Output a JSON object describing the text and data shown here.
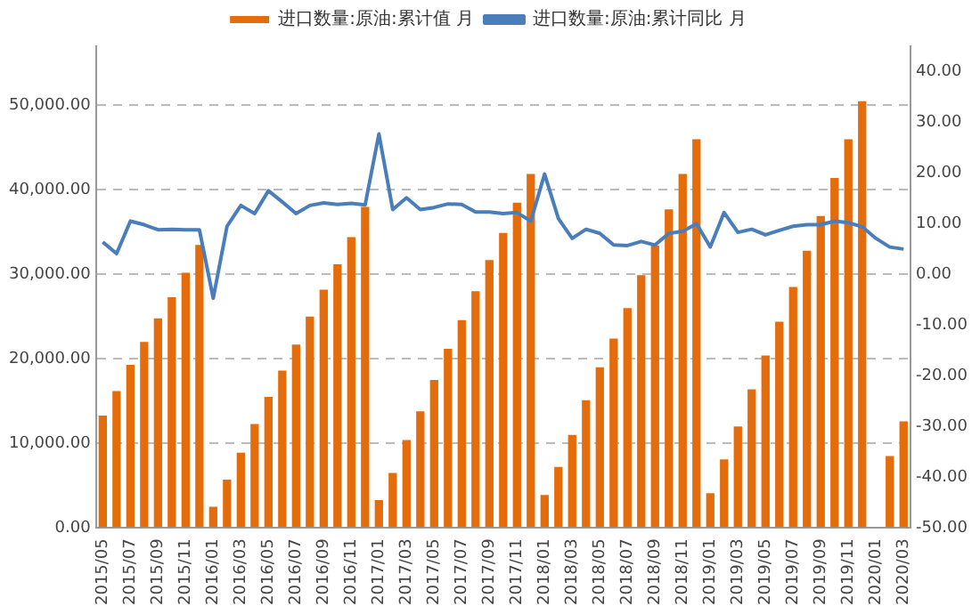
{
  "chart_data": {
    "type": "bar",
    "categories": [
      "2015/05",
      null,
      "2015/07",
      null,
      "2015/09",
      null,
      "2015/11",
      null,
      "2016/01",
      null,
      "2016/03",
      null,
      "2016/05",
      null,
      "2016/07",
      null,
      "2016/09",
      null,
      "2016/11",
      null,
      "2017/01",
      null,
      "2017/03",
      null,
      "2017/05",
      null,
      "2017/07",
      null,
      "2017/09",
      null,
      "2017/11",
      null,
      "2018/01",
      null,
      "2018/03",
      null,
      "2018/05",
      null,
      "2018/07",
      null,
      "2018/09",
      null,
      "2018/11",
      null,
      "2019/01",
      null,
      "2019/03",
      null,
      "2019/05",
      null,
      "2019/07",
      null,
      "2019/09",
      null,
      "2019/11",
      null,
      "2020/01",
      null,
      "2020/03"
    ],
    "series": [
      {
        "name": "进口数量:原油:累计值 月",
        "color": "#e46c0a",
        "values": [
          13300,
          16200,
          19300,
          22000,
          24800,
          27300,
          30200,
          33500,
          2500,
          5700,
          8900,
          12300,
          15500,
          18600,
          21700,
          25000,
          28200,
          31200,
          34400,
          38000,
          3300,
          6500,
          10400,
          13800,
          17500,
          21200,
          24600,
          28000,
          31700,
          34900,
          38500,
          41900,
          3900,
          7200,
          11000,
          15100,
          19000,
          22400,
          26000,
          29900,
          33400,
          37700,
          41900,
          46000,
          4100,
          8100,
          12000,
          16400,
          20400,
          24400,
          28500,
          32800,
          36900,
          41400,
          46000,
          50500,
          null,
          8500,
          12600
        ]
      },
      {
        "name": "进口数量:原油:累计同比 月",
        "type": "line",
        "axis": "y2",
        "color": "#4a7ebb",
        "values": [
          6.4,
          4.1,
          10.5,
          9.8,
          8.8,
          8.9,
          8.8,
          8.8,
          -4.7,
          9.5,
          13.6,
          12.0,
          16.5,
          14.3,
          12.0,
          13.6,
          14.1,
          13.8,
          14.0,
          13.7,
          27.7,
          12.8,
          15.1,
          12.8,
          13.2,
          13.9,
          13.8,
          12.3,
          12.3,
          12.0,
          12.2,
          10.5,
          19.8,
          11.0,
          7.1,
          8.9,
          8.1,
          5.8,
          5.7,
          6.5,
          5.8,
          8.1,
          8.5,
          10.0,
          5.4,
          12.2,
          8.3,
          8.9,
          7.8,
          8.7,
          9.5,
          9.8,
          9.8,
          10.5,
          10.2,
          9.4,
          7.1,
          5.4,
          5.0
        ]
      }
    ],
    "ylim": [
      0,
      57000
    ],
    "yticks": [
      {
        "value": 0,
        "label": "0.00"
      },
      {
        "value": 10000,
        "label": "10,000.00"
      },
      {
        "value": 20000,
        "label": "20,000.00"
      },
      {
        "value": 30000,
        "label": "30,000.00"
      },
      {
        "value": 40000,
        "label": "40,000.00"
      },
      {
        "value": 50000,
        "label": "50,000.00"
      }
    ],
    "y2lim": [
      -50,
      45
    ],
    "y2ticks": [
      {
        "value": -50,
        "label": "-50.00"
      },
      {
        "value": -40,
        "label": "-40.00"
      },
      {
        "value": -30,
        "label": "-30.00"
      },
      {
        "value": -20,
        "label": "-20.00"
      },
      {
        "value": -10,
        "label": "-10.00"
      },
      {
        "value": 0,
        "label": "0.00"
      },
      {
        "value": 10,
        "label": "10.00"
      },
      {
        "value": 20,
        "label": "20.00"
      },
      {
        "value": 30,
        "label": "30.00"
      },
      {
        "value": 40,
        "label": "40.00"
      }
    ],
    "grid": "y",
    "legend": "top",
    "marker": "none"
  }
}
